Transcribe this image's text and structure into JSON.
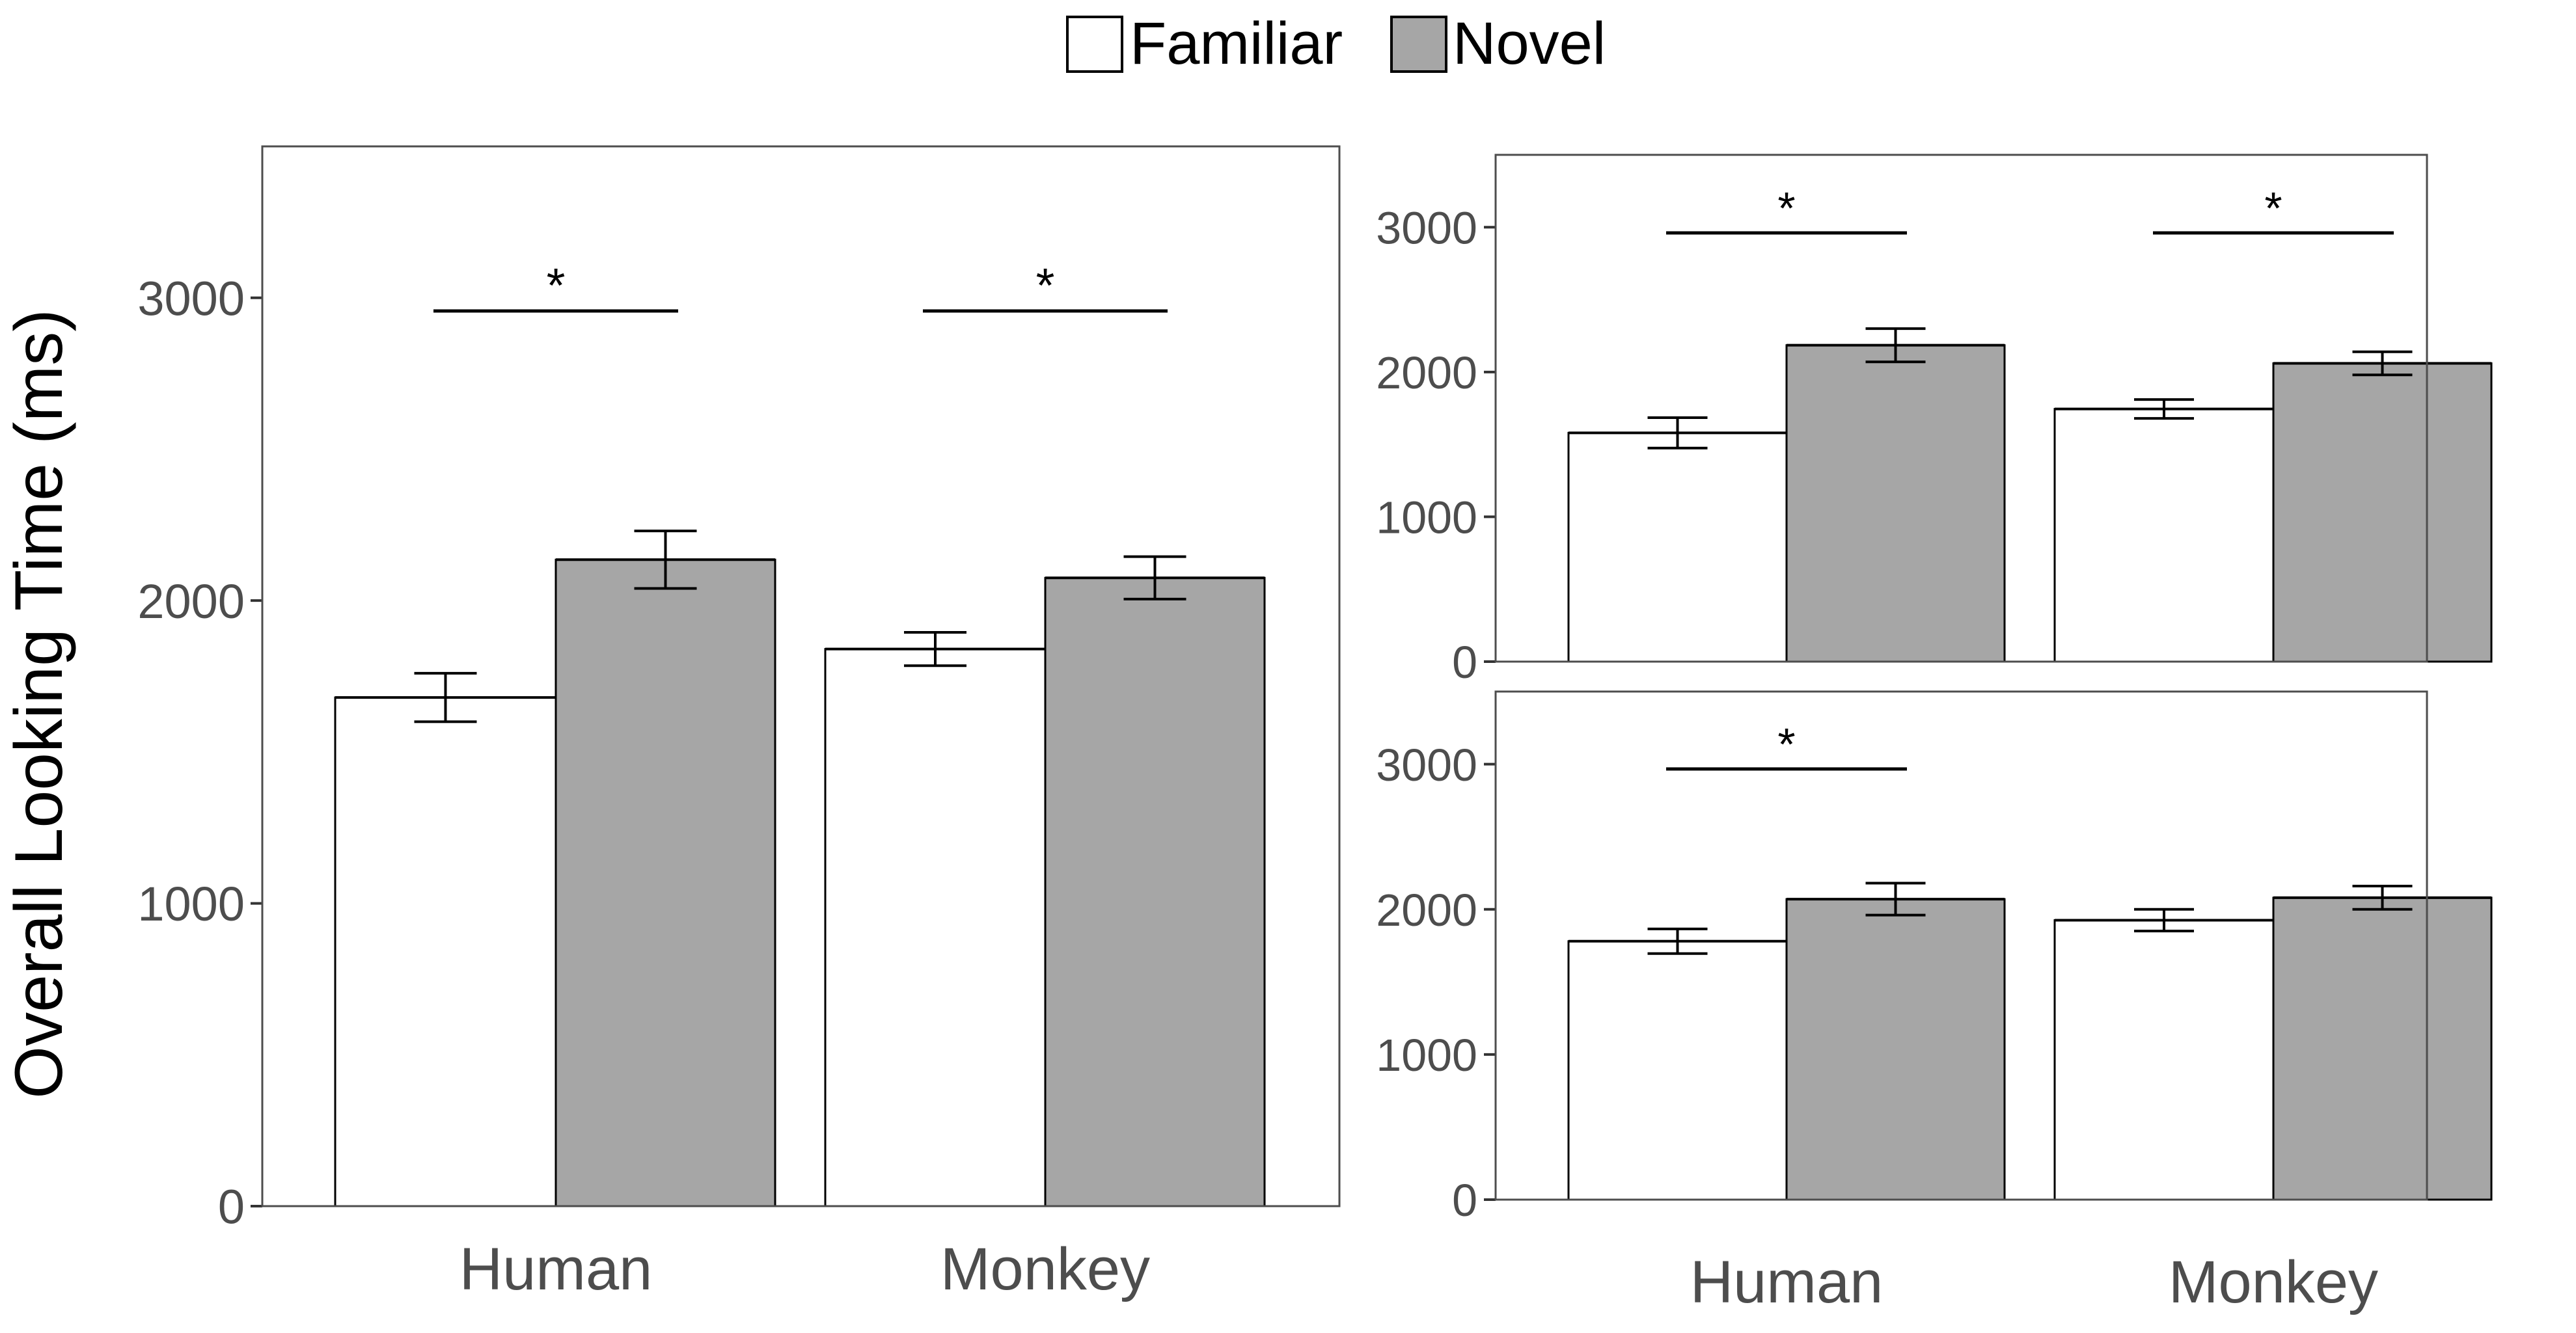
{
  "legend": {
    "items": [
      {
        "label": "Familiar",
        "color": "#ffffff"
      },
      {
        "label": "Novel",
        "color": "#a6a6a6"
      }
    ]
  },
  "colors": {
    "familiar": "#ffffff",
    "novel": "#a6a6a6",
    "stroke": "#000000",
    "tick_text": "#4d4d4d"
  },
  "chart_data": [
    {
      "type": "bar",
      "panel": "left",
      "categories": [
        "Human",
        "Monkey"
      ],
      "series": [
        {
          "name": "Familiar",
          "values": [
            1680,
            1840
          ],
          "error": [
            80,
            55
          ]
        },
        {
          "name": "Novel",
          "values": [
            2135,
            2075
          ],
          "error": [
            95,
            70
          ]
        }
      ],
      "ylabel": "Overall Looking Time (ms)",
      "xlabel": "",
      "ylim": [
        0,
        3500
      ],
      "yticks": [
        "0",
        "1000",
        "2000",
        "3000"
      ],
      "significance": [
        {
          "category": "Human",
          "label": "*"
        },
        {
          "category": "Monkey",
          "label": "*"
        }
      ]
    },
    {
      "type": "bar",
      "panel": "top-right",
      "categories": [
        "Human",
        "Monkey"
      ],
      "series": [
        {
          "name": "Familiar",
          "values": [
            1580,
            1745
          ],
          "error": [
            105,
            65
          ]
        },
        {
          "name": "Novel",
          "values": [
            2185,
            2060
          ],
          "error": [
            115,
            80
          ]
        }
      ],
      "ylim": [
        0,
        3500
      ],
      "yticks": [
        "0",
        "1000",
        "2000",
        "3000"
      ],
      "significance": [
        {
          "category": "Human",
          "label": "*"
        },
        {
          "category": "Monkey",
          "label": "*"
        }
      ]
    },
    {
      "type": "bar",
      "panel": "bottom-right",
      "categories": [
        "Human",
        "Monkey"
      ],
      "series": [
        {
          "name": "Familiar",
          "values": [
            1780,
            1925
          ],
          "error": [
            85,
            75
          ]
        },
        {
          "name": "Novel",
          "values": [
            2070,
            2080
          ],
          "error": [
            110,
            80
          ]
        }
      ],
      "ylim": [
        0,
        3500
      ],
      "yticks": [
        "0",
        "1000",
        "2000",
        "3000"
      ],
      "significance": [
        {
          "category": "Human",
          "label": "*"
        }
      ]
    }
  ]
}
